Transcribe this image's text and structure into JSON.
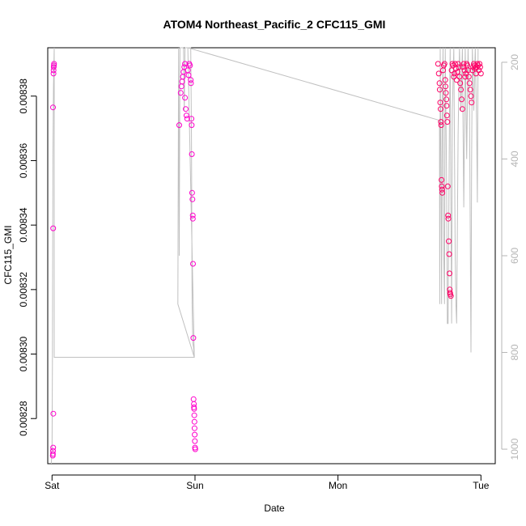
{
  "chart_data": {
    "type": "scatter",
    "title": "ATOM4 Northeast_Pacific_2 CFC115_GMI",
    "xlabel": "Date",
    "ylabel": "CFC115_GMI",
    "x_tick_labels": [
      "Sat",
      "Sun",
      "Mon",
      "Tue"
    ],
    "x_tick_days": [
      0,
      1,
      2,
      3
    ],
    "xlim": [
      -0.03,
      3.1
    ],
    "ylim": [
      0.008266,
      0.008395
    ],
    "y_ticks": [
      0.00828,
      0.0083,
      0.00832,
      0.00834,
      0.00836,
      0.00838
    ],
    "y_tick_labels": [
      "0.00828",
      "0.00830",
      "0.00832",
      "0.00834",
      "0.00836",
      "0.00838"
    ],
    "y2_ticks": [
      200,
      400,
      600,
      800,
      1000
    ],
    "y2_tick_labels": [
      "200",
      "400",
      "600",
      "800",
      "1000"
    ],
    "y2_lim": [
      1030,
      170
    ],
    "colors": {
      "points": "#ff00cc",
      "points_dense": "#ff0066",
      "line": "#c0c0c0",
      "axis": "#000000",
      "axis2": "#b5b5b5"
    },
    "series": [
      {
        "marker": "open-circle",
        "points": [
          [
            0.005,
            0.0082685
          ],
          [
            0.006,
            0.008269
          ],
          [
            0.007,
            0.00827
          ],
          [
            0.008,
            0.008271
          ],
          [
            0.009,
            0.0082815
          ],
          [
            0.008,
            0.008339
          ],
          [
            0.007,
            0.0083765
          ],
          [
            0.01,
            0.008387
          ],
          [
            0.011,
            0.008388
          ],
          [
            0.012,
            0.008389
          ],
          [
            0.013,
            0.0083895
          ],
          [
            0.014,
            0.00839
          ],
          [
            0.89,
            0.008371
          ],
          [
            0.9,
            0.008381
          ],
          [
            0.905,
            0.008383
          ],
          [
            0.91,
            0.0083845
          ],
          [
            0.915,
            0.008386
          ],
          [
            0.92,
            0.0083875
          ],
          [
            0.925,
            0.008389
          ],
          [
            0.93,
            0.00839
          ],
          [
            0.93,
            0.0083795
          ],
          [
            0.935,
            0.008376
          ],
          [
            0.94,
            0.008374
          ],
          [
            0.945,
            0.008373
          ],
          [
            0.95,
            0.008388
          ],
          [
            0.955,
            0.0083865
          ],
          [
            0.96,
            0.00839
          ],
          [
            0.965,
            0.0083895
          ],
          [
            0.97,
            0.008385
          ],
          [
            0.972,
            0.008384
          ],
          [
            0.975,
            0.008373
          ],
          [
            0.977,
            0.008371
          ],
          [
            0.978,
            0.008362
          ],
          [
            0.98,
            0.00835
          ],
          [
            0.982,
            0.008348
          ],
          [
            0.984,
            0.008343
          ],
          [
            0.985,
            0.008342
          ],
          [
            0.986,
            0.008328
          ],
          [
            0.988,
            0.008305
          ],
          [
            0.99,
            0.008286
          ],
          [
            0.992,
            0.0082845
          ],
          [
            0.993,
            0.0082835
          ],
          [
            0.994,
            0.008283
          ],
          [
            0.995,
            0.008281
          ],
          [
            0.996,
            0.008279
          ],
          [
            0.997,
            0.008277
          ],
          [
            0.998,
            0.008275
          ],
          [
            0.999,
            0.008273
          ],
          [
            1.0,
            0.008271
          ],
          [
            1.002,
            0.0082705
          ],
          [
            2.7,
            0.00839
          ],
          [
            2.705,
            0.008387
          ],
          [
            2.71,
            0.008384
          ],
          [
            2.712,
            0.008382
          ],
          [
            2.715,
            0.008378
          ],
          [
            2.718,
            0.008376
          ],
          [
            2.72,
            0.008372
          ],
          [
            2.722,
            0.008371
          ],
          [
            2.724,
            0.008354
          ],
          [
            2.726,
            0.008352
          ],
          [
            2.728,
            0.008351
          ],
          [
            2.73,
            0.00835
          ],
          [
            2.735,
            0.008388
          ],
          [
            2.74,
            0.0083895
          ],
          [
            2.745,
            0.00839
          ],
          [
            2.75,
            0.008385
          ],
          [
            2.752,
            0.008383
          ],
          [
            2.755,
            0.008381
          ],
          [
            2.758,
            0.008379
          ],
          [
            2.76,
            0.008377
          ],
          [
            2.762,
            0.008374
          ],
          [
            2.765,
            0.008372
          ],
          [
            2.768,
            0.008352
          ],
          [
            2.77,
            0.008343
          ],
          [
            2.772,
            0.008342
          ],
          [
            2.775,
            0.008335
          ],
          [
            2.778,
            0.008331
          ],
          [
            2.78,
            0.008325
          ],
          [
            2.782,
            0.00832
          ],
          [
            2.784,
            0.008319
          ],
          [
            2.786,
            0.0083185
          ],
          [
            2.79,
            0.008318
          ],
          [
            2.795,
            0.008388
          ],
          [
            2.8,
            0.00839
          ],
          [
            2.805,
            0.0083895
          ],
          [
            2.81,
            0.008386
          ],
          [
            2.815,
            0.008387
          ],
          [
            2.82,
            0.00839
          ],
          [
            2.825,
            0.0083885
          ],
          [
            2.83,
            0.008385
          ],
          [
            2.835,
            0.0083875
          ],
          [
            2.84,
            0.00839
          ],
          [
            2.845,
            0.008389
          ],
          [
            2.85,
            0.008386
          ],
          [
            2.855,
            0.008384
          ],
          [
            2.86,
            0.008382
          ],
          [
            2.865,
            0.008379
          ],
          [
            2.87,
            0.008376
          ],
          [
            2.875,
            0.008389
          ],
          [
            2.88,
            0.00839
          ],
          [
            2.885,
            0.008388
          ],
          [
            2.89,
            0.008386
          ],
          [
            2.895,
            0.008387
          ],
          [
            2.9,
            0.00839
          ],
          [
            2.905,
            0.0083895
          ],
          [
            2.91,
            0.008388
          ],
          [
            2.915,
            0.008386
          ],
          [
            2.92,
            0.008384
          ],
          [
            2.925,
            0.008382
          ],
          [
            2.93,
            0.00838
          ],
          [
            2.935,
            0.008378
          ],
          [
            2.94,
            0.008388
          ],
          [
            2.945,
            0.008389
          ],
          [
            2.95,
            0.00839
          ],
          [
            2.955,
            0.0083895
          ],
          [
            2.96,
            0.0083885
          ],
          [
            2.965,
            0.008387
          ],
          [
            2.97,
            0.008389
          ],
          [
            2.975,
            0.00839
          ],
          [
            2.98,
            0.0083895
          ],
          [
            2.985,
            0.008388
          ],
          [
            2.99,
            0.00839
          ],
          [
            2.995,
            0.008389
          ],
          [
            3.0,
            0.008387
          ]
        ]
      },
      {
        "marker": "line",
        "axis": "right",
        "points": [
          [
            -0.005,
            1030
          ],
          [
            0.0,
            1000
          ],
          [
            0.003,
            820
          ],
          [
            0.006,
            400
          ],
          [
            0.01,
            250
          ],
          [
            0.015,
            170
          ],
          [
            0.015,
            810
          ],
          [
            0.995,
            810
          ],
          [
            0.88,
            700
          ],
          [
            0.885,
            170
          ],
          [
            0.89,
            600
          ],
          [
            0.895,
            170
          ],
          [
            0.92,
            170
          ],
          [
            0.925,
            300
          ],
          [
            0.93,
            170
          ],
          [
            0.96,
            170
          ],
          [
            0.97,
            170
          ],
          [
            0.975,
            350
          ],
          [
            0.98,
            700
          ],
          [
            0.985,
            780
          ],
          [
            0.99,
            790
          ],
          [
            0.995,
            810
          ],
          [
            0.95,
            150
          ],
          [
            2.71,
            320
          ],
          [
            2.71,
            320
          ],
          [
            2.712,
            700
          ],
          [
            2.715,
            170
          ],
          [
            2.72,
            400
          ],
          [
            2.725,
            700
          ],
          [
            2.73,
            300
          ],
          [
            2.735,
            170
          ],
          [
            2.74,
            600
          ],
          [
            2.745,
            700
          ],
          [
            2.75,
            170
          ],
          [
            2.76,
            450
          ],
          [
            2.765,
            740
          ],
          [
            2.77,
            740
          ],
          [
            2.78,
            300
          ],
          [
            2.785,
            170
          ],
          [
            2.79,
            500
          ],
          [
            2.795,
            740
          ],
          [
            2.8,
            300
          ],
          [
            2.81,
            170
          ],
          [
            2.82,
            600
          ],
          [
            2.825,
            700
          ],
          [
            2.83,
            740
          ],
          [
            2.84,
            350
          ],
          [
            2.85,
            170
          ],
          [
            2.86,
            300
          ],
          [
            2.87,
            170
          ],
          [
            2.88,
            500
          ],
          [
            2.89,
            170
          ],
          [
            2.9,
            400
          ],
          [
            2.91,
            170
          ],
          [
            2.92,
            300
          ],
          [
            2.93,
            800
          ],
          [
            2.935,
            400
          ],
          [
            2.94,
            170
          ],
          [
            2.95,
            300
          ],
          [
            2.96,
            170
          ],
          [
            2.97,
            330
          ],
          [
            2.975,
            490
          ],
          [
            2.98,
            170
          ]
        ]
      }
    ]
  }
}
